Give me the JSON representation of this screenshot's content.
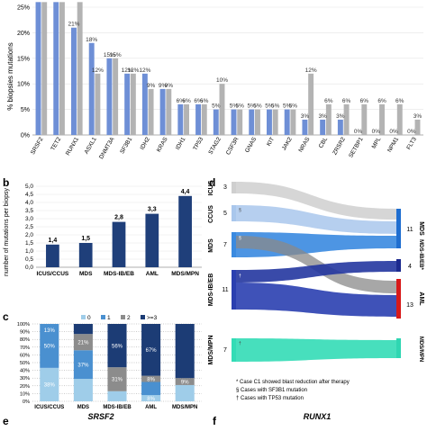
{
  "panels": {
    "a": "",
    "b": "b",
    "c": "c",
    "d": "d",
    "e": "e",
    "f": "f"
  },
  "colors": {
    "blue_bar": "#6e8fd6",
    "grey_bar": "#b3b3b3",
    "navy": "#1f3f7a",
    "stack_0": "#1c3c75",
    "stack_1": "#8c8c8c",
    "stack_2": "#4a90d0",
    "stack_3": "#9fcde9",
    "sankey_grey": "#c8c8c8",
    "sankey_dark": "#6e6e6e",
    "sankey_blue": "#3a7ed6",
    "sankey_navy": "#1c2a8e",
    "sankey_teal": "#2fd6b2",
    "sankey_red": "#d81a1a"
  },
  "chart_data": [
    {
      "id": "a",
      "type": "bar",
      "ylabel": "% biopsies mutations",
      "ylim": [
        0,
        25
      ],
      "yticks": [
        "0%",
        "5%",
        "10%",
        "15%",
        "20%",
        "25%"
      ],
      "categories": [
        "SRSF2",
        "TET2",
        "RUNX1",
        "ASXL1",
        "DNMT3A",
        "SF3B1",
        "IDH2",
        "KRAS",
        "IDH1",
        "TP53",
        "STAG2",
        "CSF3R",
        "GNAS",
        "KIT",
        "JAK2",
        "NRAS",
        "CBL",
        "ZRSR2",
        "SETBP1",
        "MPL",
        "NPM1",
        "FLT3"
      ],
      "series": [
        {
          "values": [
            27,
            27,
            21,
            18,
            15,
            12,
            12,
            9,
            6,
            6,
            5,
            5,
            5,
            5,
            5,
            3,
            3,
            3,
            0,
            0,
            0,
            0
          ]
        },
        {
          "values": [
            27,
            27,
            27,
            12,
            15,
            12,
            9,
            9,
            6,
            6,
            10,
            5,
            5,
            5,
            5,
            12,
            6,
            6,
            6,
            6,
            6,
            3
          ]
        }
      ],
      "labels": [
        [
          "",
          "",
          "21%",
          "18%",
          "15%",
          "12%",
          "12%",
          "9%",
          "6%",
          "6%",
          "5%",
          "5%",
          "5%",
          "5%",
          "5%",
          "3%",
          "3%",
          "3%",
          "0%",
          "0%",
          "0%",
          "0%"
        ],
        [
          "",
          "",
          "",
          "12%",
          "15%",
          "12%",
          "9%",
          "9%",
          "6%",
          "6%",
          "10%",
          "5%",
          "5%",
          "5%",
          "5%",
          "12%",
          "6%",
          "6%",
          "6%",
          "6%",
          "6%",
          "3%"
        ]
      ]
    },
    {
      "id": "b",
      "type": "bar",
      "ylabel": "number of mutations per biopsy",
      "ylim": [
        0,
        5
      ],
      "yticks": [
        "0,0",
        "0,5",
        "1,0",
        "1,5",
        "2,0",
        "2,5",
        "3,0",
        "3,5",
        "4,0",
        "4,5",
        "5,0"
      ],
      "categories": [
        "ICUS/CCUS",
        "MDS",
        "MDS-IB/EB",
        "AML",
        "MDS/MPN"
      ],
      "values": [
        1.4,
        1.5,
        2.8,
        3.3,
        4.4
      ],
      "value_labels": [
        "1,4",
        "1,5",
        "2,8",
        "3,3",
        "4,4"
      ]
    },
    {
      "id": "c",
      "type": "bar",
      "stacked": true,
      "legend": [
        "0",
        "1",
        "2",
        ">=3"
      ],
      "legend_placement": "top",
      "categories": [
        "ICUS/CCUS",
        "MDS",
        "MDS-IB/EB",
        "AML",
        "MDS/MPN"
      ],
      "yticks": [
        "0%",
        "10%",
        "20%",
        "30%",
        "40%",
        "50%",
        "60%",
        "70%",
        "80%",
        "90%",
        "100%"
      ],
      "stacks": [
        {
          "values": [
            0,
            13,
            56,
            67,
            70
          ],
          "labels": [
            "",
            "",
            "56%",
            "67%",
            ""
          ]
        },
        {
          "values": [
            0,
            21,
            31,
            8,
            9
          ],
          "labels": [
            "",
            "21%",
            "31%",
            "8%",
            "9%"
          ]
        },
        {
          "values": [
            50,
            37,
            0,
            17,
            0
          ],
          "labels": [
            "50%",
            "37%",
            "",
            "",
            ""
          ]
        },
        {
          "values": [
            38,
            29,
            13,
            8,
            21
          ],
          "labels": [
            "38%",
            "",
            "",
            "8%",
            ""
          ]
        }
      ],
      "top_labels": [
        "13%",
        "",
        "",
        "",
        ""
      ]
    },
    {
      "id": "d",
      "type": "sankey",
      "left_nodes": [
        {
          "name": "ICUS",
          "count": "3"
        },
        {
          "name": "CCUS",
          "count": "5"
        },
        {
          "name": "MDS",
          "count": "7"
        },
        {
          "name": "MDS-IB/EB",
          "count": "11"
        },
        {
          "name": "MDS/MPN",
          "count": "7"
        }
      ],
      "right_nodes": [
        {
          "name": "MDS",
          "count": "11"
        },
        {
          "name": "MDS-IB/EB*",
          "count": "4"
        },
        {
          "name": "AML",
          "count": "13"
        },
        {
          "name": "MDS/MPN",
          "count": ""
        }
      ],
      "small_marks": [
        "§",
        "§",
        "†",
        "†"
      ],
      "footnotes": [
        "* Case C1 showed blast reduction after therapy",
        "§ Cases with SF3B1 mutation",
        "† Cases with TP53 mutation"
      ]
    }
  ],
  "bottom": {
    "e_title": "SRSF2",
    "f_title": "RUNX1"
  }
}
